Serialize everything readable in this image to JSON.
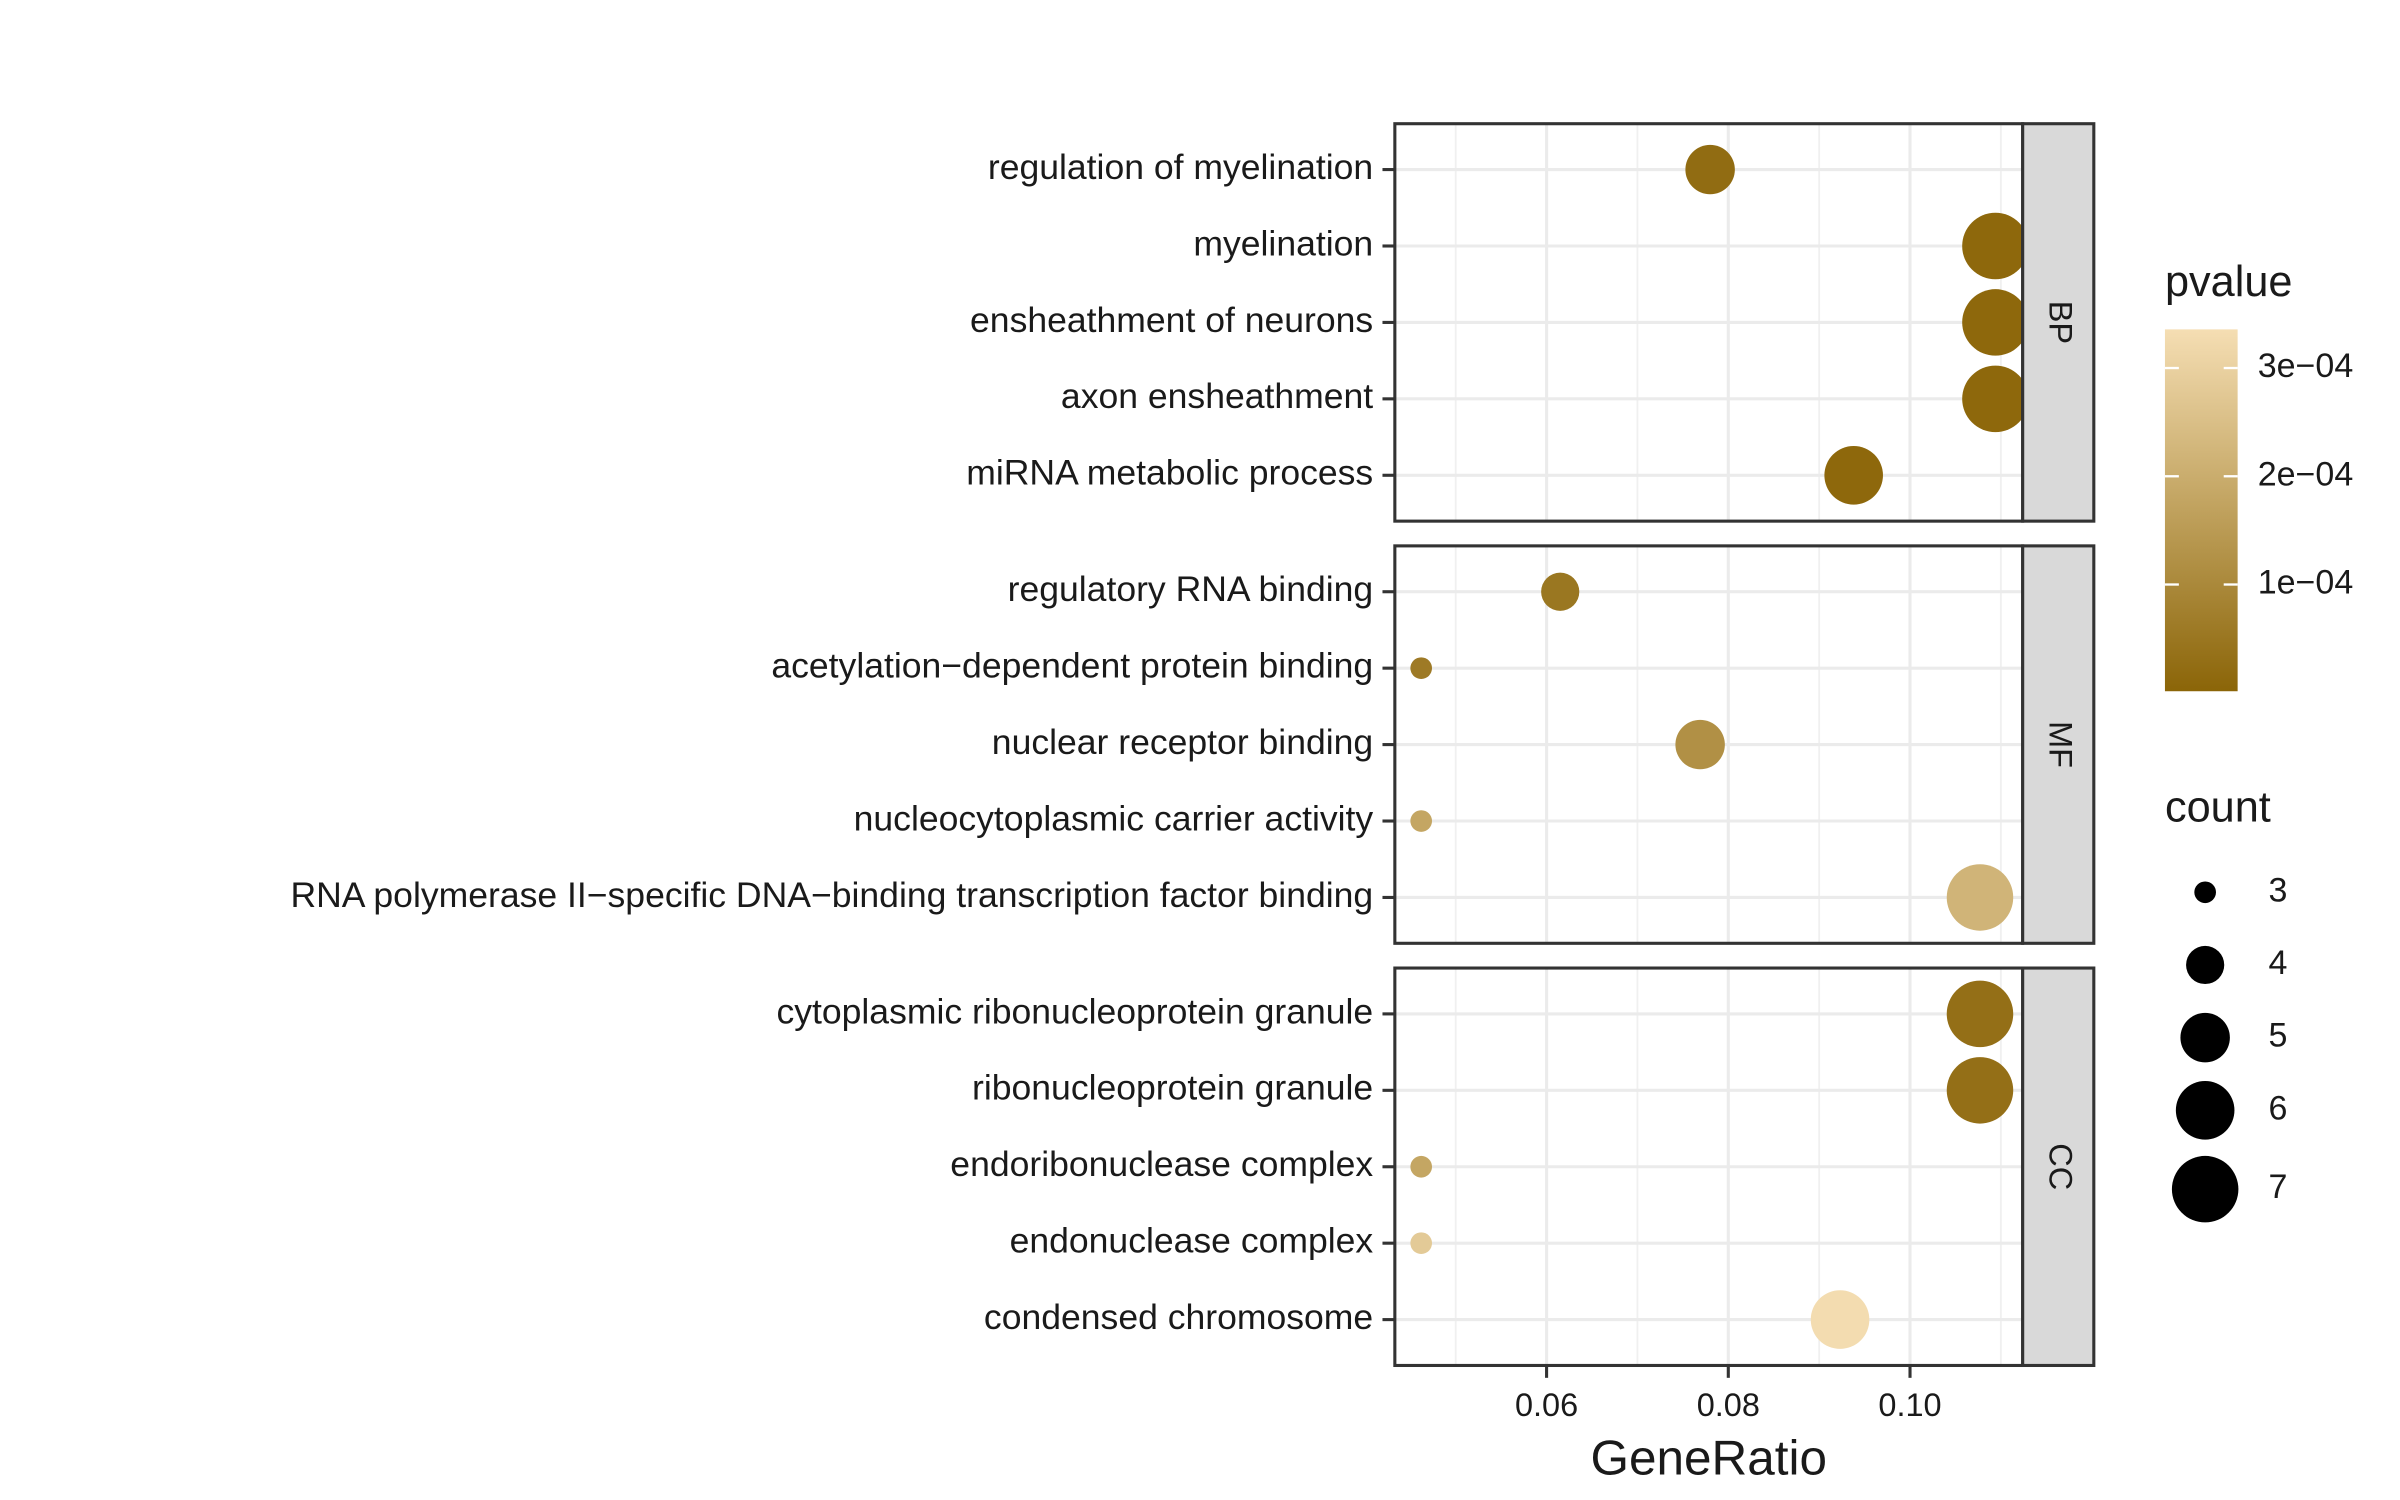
{
  "chart_data": {
    "type": "dotplot",
    "x_label": "GeneRatio",
    "xlim": [
      0.0433,
      0.1124
    ],
    "xticks": [
      0.06,
      0.08,
      {
        "value": 0.1,
        "label": "0.10"
      }
    ],
    "x_minor_grid": [
      0.05,
      0.07,
      0.09,
      0.11
    ],
    "grid": true,
    "color_legend": {
      "title": "pvalue",
      "lim": [
        1.4e-06,
        0.0003357
      ],
      "low": "#8b6508",
      "high": "#f5deb3",
      "ticks": [
        {
          "value": 0.0003,
          "label": "3e−04"
        },
        {
          "value": 0.0002,
          "label": "2e−04"
        },
        {
          "value": 0.0001,
          "label": "1e−04"
        }
      ]
    },
    "size_legend": {
      "title": "count",
      "values": [
        3,
        4,
        5,
        6,
        7
      ]
    },
    "panels": [
      {
        "name": "BP",
        "categories": [
          "regulation of myelination",
          "myelination",
          "ensheathment of neurons",
          "axon ensheathment",
          "miRNA metabolic process"
        ],
        "x": [
          0.078,
          0.1094,
          0.1094,
          0.1094,
          0.0938
        ],
        "count": [
          5,
          7,
          7,
          7,
          6
        ],
        "pvalue": [
          2e-05,
          1e-05,
          1e-05,
          1e-05,
          1e-05
        ]
      },
      {
        "name": "MF",
        "categories": [
          "regulatory RNA binding",
          "acetylation−dependent protein binding",
          "nuclear receptor binding",
          "nucleocytoplasmic carrier activity",
          "RNA polymerase II−specific DNA−binding transcription factor binding"
        ],
        "x": [
          0.0615,
          0.0462,
          0.0769,
          0.0462,
          0.1077
        ],
        "count": [
          4,
          3,
          5,
          3,
          7
        ],
        "pvalue": [
          5e-05,
          6e-05,
          0.00012,
          0.00018,
          0.00022
        ]
      },
      {
        "name": "CC",
        "categories": [
          "cytoplasmic ribonucleoprotein granule",
          "ribonucleoprotein granule",
          "endoribonuclease complex",
          "endonuclease complex",
          "condensed chromosome"
        ],
        "x": [
          0.1077,
          0.1077,
          0.0462,
          0.0462,
          0.0923
        ],
        "count": [
          7,
          7,
          3,
          3,
          6
        ],
        "pvalue": [
          3e-05,
          3e-05,
          0.00018,
          0.00028,
          0.00033
        ]
      }
    ]
  }
}
